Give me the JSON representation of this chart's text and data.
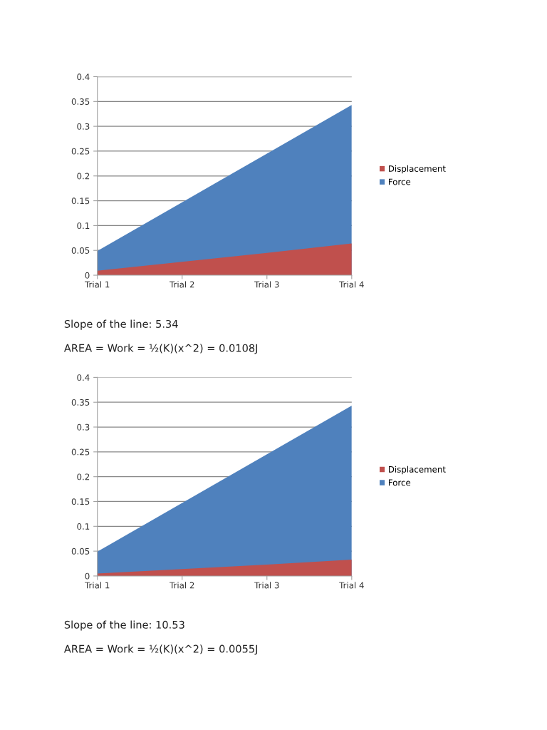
{
  "chart_data": [
    {
      "type": "area",
      "categories": [
        "Trial 1",
        "Trial 2",
        "Trial 3",
        "Trial 4"
      ],
      "series": [
        {
          "name": "Displacement",
          "color": "#c0504d",
          "values": [
            0.009,
            0.027,
            0.045,
            0.064
          ]
        },
        {
          "name": "Force",
          "color": "#4f81bd",
          "values": [
            0.049,
            0.147,
            0.245,
            0.343
          ]
        }
      ],
      "ylim": [
        0,
        0.4
      ],
      "yticks": [
        0,
        0.05,
        0.1,
        0.15,
        0.2,
        0.25,
        0.3,
        0.35,
        0.4
      ],
      "grid": "y",
      "legend": "right",
      "annotations": [
        "Slope of the line: 5.34",
        "AREA = Work = ½(K)(x^2) = 0.0108J"
      ]
    },
    {
      "type": "area",
      "categories": [
        "Trial 1",
        "Trial 2",
        "Trial 3",
        "Trial 4"
      ],
      "series": [
        {
          "name": "Displacement",
          "color": "#c0504d",
          "values": [
            0.005,
            0.014,
            0.023,
            0.033
          ]
        },
        {
          "name": "Force",
          "color": "#4f81bd",
          "values": [
            0.049,
            0.147,
            0.245,
            0.343
          ]
        }
      ],
      "ylim": [
        0,
        0.4
      ],
      "yticks": [
        0,
        0.05,
        0.1,
        0.15,
        0.2,
        0.25,
        0.3,
        0.35,
        0.4
      ],
      "grid": "y",
      "legend": "right",
      "annotations": [
        "Slope of the line: 10.53",
        "AREA = Work = ½(K)(x^2) = 0.0055J"
      ]
    }
  ]
}
